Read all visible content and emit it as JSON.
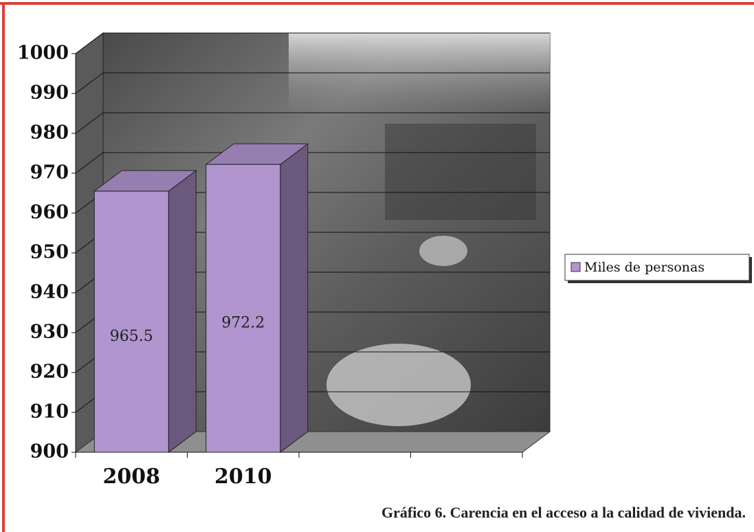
{
  "chart_data": {
    "type": "bar3d",
    "title": "Gráfico 6. Carencia en el acceso a la calidad de vivienda.",
    "categories": [
      "2008",
      "2010",
      null,
      null
    ],
    "series": [
      {
        "name": "Miles de personas",
        "color": "#b095cf",
        "values": [
          965.5,
          972.2,
          null,
          null
        ]
      }
    ],
    "ylim": [
      900,
      1000
    ],
    "yticks": [
      900,
      910,
      920,
      930,
      940,
      950,
      960,
      970,
      980,
      990,
      1000
    ],
    "grid": true,
    "legend": "right"
  }
}
